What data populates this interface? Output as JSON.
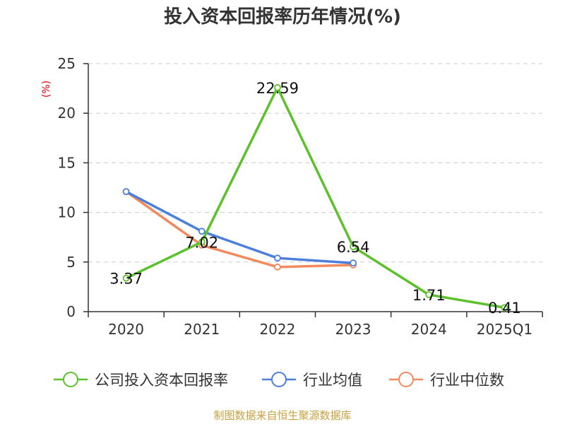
{
  "chart_data": {
    "type": "line",
    "title": "投入资本回报率历年情况(%)",
    "unit_label": "(%)",
    "categories": [
      "2020",
      "2021",
      "2022",
      "2023",
      "2024",
      "2025Q1"
    ],
    "ylim": [
      0,
      25
    ],
    "yticks": [
      "0",
      "5",
      "10",
      "15",
      "20",
      "25"
    ],
    "grid": true,
    "legend_position": "bottom",
    "series": [
      {
        "name": "公司投入资本回报率",
        "color": "#5cc12c",
        "values": [
          3.37,
          7.02,
          22.59,
          6.54,
          1.71,
          0.41
        ],
        "labels": [
          "3.37",
          "7.02",
          "22.59",
          "6.54",
          "1.71",
          "0.41"
        ]
      },
      {
        "name": "行业均值",
        "color": "#4c7fdc",
        "values": [
          12.1,
          8.1,
          5.4,
          4.9,
          null,
          null
        ]
      },
      {
        "name": "行业中位数",
        "color": "#f28a5e",
        "values": [
          12.1,
          6.7,
          4.5,
          4.7,
          null,
          null
        ]
      }
    ],
    "source": "制图数据来自恒生聚源数据库"
  }
}
